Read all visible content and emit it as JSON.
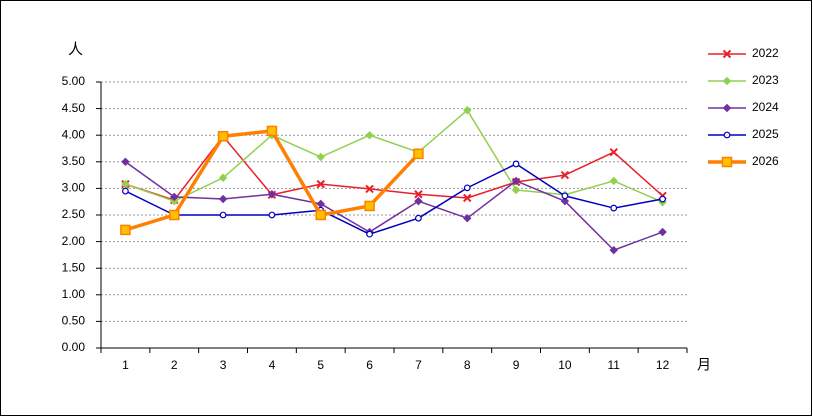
{
  "chart_data": {
    "type": "line",
    "y_label": "人",
    "x_label": "月",
    "categories": [
      "1",
      "2",
      "3",
      "4",
      "5",
      "6",
      "7",
      "8",
      "9",
      "10",
      "11",
      "12"
    ],
    "ylim": [
      0,
      5
    ],
    "yticks": [
      {
        "value": 0,
        "label": "0.00"
      },
      {
        "value": 0.5,
        "label": "0.50"
      },
      {
        "value": 1,
        "label": "1.00"
      },
      {
        "value": 1.5,
        "label": "1.50"
      },
      {
        "value": 2,
        "label": "2.00"
      },
      {
        "value": 2.5,
        "label": "2.50"
      },
      {
        "value": 3,
        "label": "3.00"
      },
      {
        "value": 3.5,
        "label": "3.50"
      },
      {
        "value": 4,
        "label": "4.00"
      },
      {
        "value": 4.5,
        "label": "4.50"
      },
      {
        "value": 5,
        "label": "5.00"
      }
    ],
    "grid": true,
    "legend": "right",
    "series": [
      {
        "name": "2022",
        "color": "#e8202a",
        "marker": "cross",
        "line_width": 1.5,
        "values": [
          3.08,
          2.78,
          3.98,
          2.88,
          3.08,
          2.99,
          2.89,
          2.82,
          3.12,
          3.25,
          3.68,
          2.86
        ]
      },
      {
        "name": "2023",
        "color": "#92d050",
        "marker": "diamond",
        "line_width": 1.5,
        "values": [
          3.08,
          2.76,
          3.2,
          4.0,
          3.59,
          4.0,
          3.68,
          4.47,
          2.97,
          2.88,
          3.14,
          2.74
        ]
      },
      {
        "name": "2024",
        "color": "#7030a0",
        "marker": "diamond",
        "line_width": 1.5,
        "values": [
          3.5,
          2.84,
          2.8,
          2.89,
          2.71,
          2.18,
          2.76,
          2.44,
          3.14,
          2.76,
          1.84,
          2.18
        ]
      },
      {
        "name": "2025",
        "color": "#0000c0",
        "marker": "circle",
        "line_width": 1.5,
        "values": [
          2.95,
          2.5,
          2.5,
          2.5,
          2.59,
          2.14,
          2.44,
          3.01,
          3.46,
          2.86,
          2.63,
          2.8
        ]
      },
      {
        "name": "2026",
        "color": "#ff7f00",
        "marker": "square",
        "line_width": 3.5,
        "values": [
          2.22,
          2.5,
          3.98,
          4.08,
          2.5,
          2.67,
          3.65,
          null,
          null,
          null,
          null,
          null
        ]
      }
    ]
  }
}
